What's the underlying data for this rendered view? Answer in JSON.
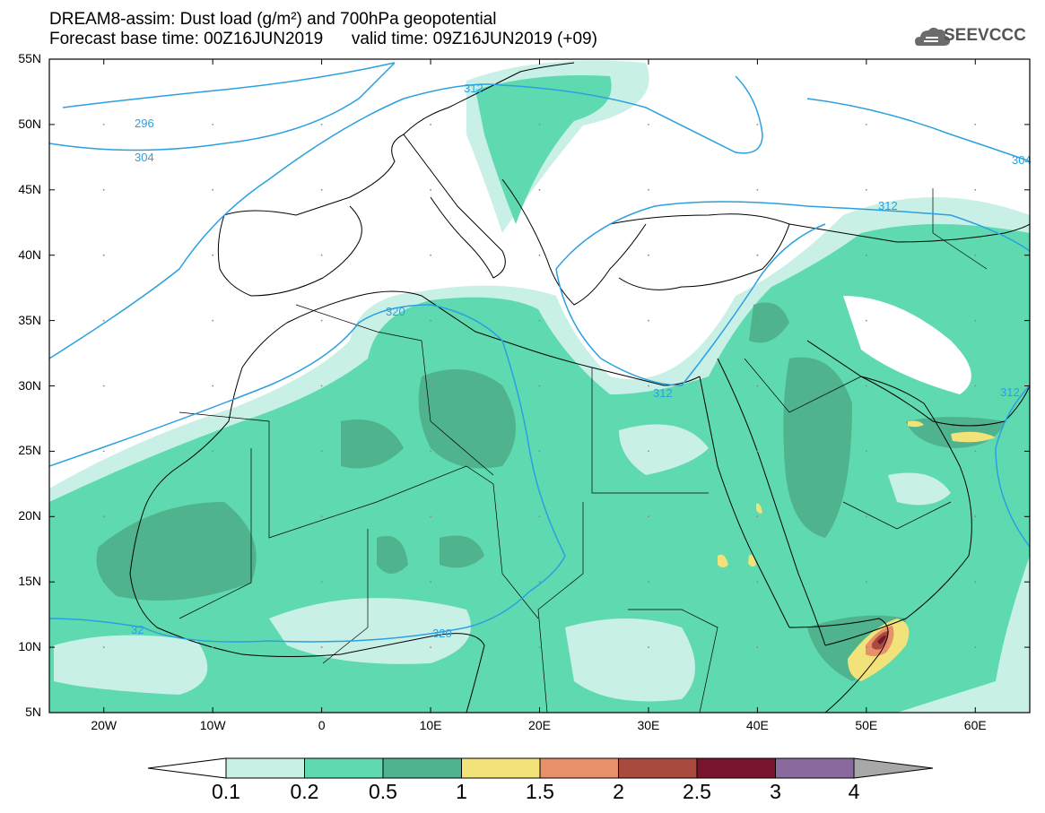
{
  "title": {
    "line1": "DREAM8-assim: Dust load (g/m²) and 700hPa geopotential",
    "line2": "Forecast base time: 00Z16JUN2019      valid time: 09Z16JUN2019 (+09)"
  },
  "logo": {
    "text": "SEEVCCC",
    "icon": "cloud-icon"
  },
  "axes": {
    "lat_labels": [
      "55N",
      "50N",
      "45N",
      "40N",
      "35N",
      "30N",
      "25N",
      "20N",
      "15N",
      "10N",
      "5N"
    ],
    "lon_labels": [
      "20W",
      "10W",
      "0",
      "10E",
      "20E",
      "30E",
      "40E",
      "50E",
      "60E"
    ],
    "lon_range": [
      -25,
      65
    ],
    "lat_range": [
      5,
      55
    ]
  },
  "contours": {
    "labels": [
      "296",
      "304",
      "312",
      "312",
      "312",
      "312",
      "320",
      "320",
      "32",
      "304"
    ]
  },
  "colorbar": {
    "levels": [
      "0.1",
      "0.2",
      "0.5",
      "1",
      "1.5",
      "2",
      "2.5",
      "3",
      "4"
    ],
    "colors": [
      "#ffffff",
      "#c9f0e6",
      "#5fd9b0",
      "#4fb38e",
      "#f2e27a",
      "#e8906a",
      "#a84a3e",
      "#7a1530",
      "#8a6a9e",
      "#a8a8a8"
    ]
  }
}
